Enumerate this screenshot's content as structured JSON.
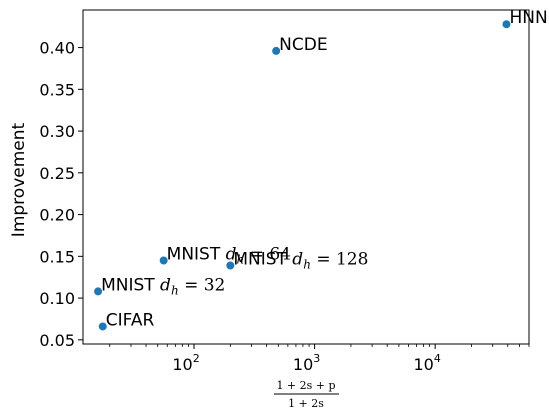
{
  "chart_data": {
    "type": "scatter",
    "ylabel": "Improvement",
    "xlabel_numerator": "1 + 2s + p",
    "xlabel_denominator": "1 + 2s",
    "x_scale": "log",
    "xlim": [
      12,
      60000
    ],
    "ylim": [
      0.045,
      0.445
    ],
    "x_ticks": [
      {
        "value": 100,
        "mantissa": "10",
        "exp": "2"
      },
      {
        "value": 1000,
        "mantissa": "10",
        "exp": "3"
      },
      {
        "value": 10000,
        "mantissa": "10",
        "exp": "4"
      }
    ],
    "y_ticks": [
      0.05,
      0.1,
      0.15,
      0.2,
      0.25,
      0.3,
      0.35,
      0.4
    ],
    "y_tick_labels": [
      "0.05",
      "0.10",
      "0.15",
      "0.20",
      "0.25",
      "0.30",
      "0.35",
      "0.40"
    ],
    "grid": false,
    "marker_color": "#1f77b4",
    "points": [
      {
        "label": "HNN",
        "x": 39000,
        "y": 0.428
      },
      {
        "label": "NCDE",
        "x": 480,
        "y": 0.396
      },
      {
        "label": "MNIST d_h = 64",
        "x": 56,
        "y": 0.145
      },
      {
        "label": "MNIST d_h = 128",
        "x": 200,
        "y": 0.139
      },
      {
        "label": "MNIST d_h = 32",
        "x": 16,
        "y": 0.108
      },
      {
        "label": "CIFAR",
        "x": 17.5,
        "y": 0.066
      }
    ]
  }
}
